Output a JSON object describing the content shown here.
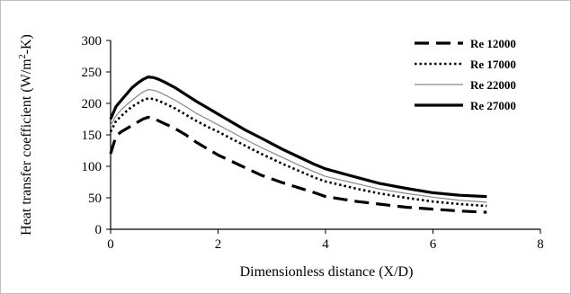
{
  "chart_data": {
    "type": "line",
    "title": "",
    "xlabel": "Dimensionless distance (X/D)",
    "ylabel_main": "Heat transfer coefficient (W/m",
    "ylabel_sup": "2",
    "ylabel_end": "-K)",
    "xlim": [
      0,
      8
    ],
    "ylim": [
      0,
      300
    ],
    "x_ticks": [
      0,
      2,
      4,
      6,
      8
    ],
    "y_ticks": [
      0,
      50,
      100,
      150,
      200,
      250,
      300
    ],
    "x_tick_labels": [
      "0",
      "2",
      "4",
      "6",
      "8"
    ],
    "y_tick_labels": [
      "0",
      "50",
      "100",
      "150",
      "200",
      "250",
      "300"
    ],
    "grid": false,
    "legend_position": "top-right",
    "series": [
      {
        "name": "Re 12000",
        "style": "long-dash",
        "color": "#000000",
        "x": [
          0,
          0.1,
          0.2,
          0.3,
          0.4,
          0.5,
          0.6,
          0.7,
          0.8,
          0.9,
          1.0,
          1.2,
          1.4,
          1.6,
          1.8,
          2.0,
          2.2,
          2.5,
          2.8,
          3.0,
          3.2,
          3.5,
          3.8,
          4.0,
          4.3,
          4.6,
          5.0,
          5.5,
          6.0,
          6.5,
          7.0
        ],
        "y": [
          120,
          148,
          155,
          160,
          165,
          170,
          175,
          178,
          176,
          172,
          168,
          160,
          150,
          138,
          128,
          118,
          110,
          98,
          86,
          80,
          74,
          66,
          58,
          52,
          48,
          44,
          40,
          35,
          32,
          29,
          27
        ]
      },
      {
        "name": "Re 17000",
        "style": "dotted",
        "color": "#000000",
        "x": [
          0,
          0.1,
          0.2,
          0.3,
          0.4,
          0.5,
          0.6,
          0.7,
          0.8,
          0.9,
          1.0,
          1.2,
          1.4,
          1.6,
          1.8,
          2.0,
          2.2,
          2.5,
          2.8,
          3.0,
          3.2,
          3.5,
          3.8,
          4.0,
          4.3,
          4.6,
          5.0,
          5.5,
          6.0,
          6.5,
          7.0
        ],
        "y": [
          155,
          172,
          180,
          188,
          195,
          200,
          205,
          208,
          207,
          204,
          200,
          192,
          182,
          172,
          163,
          155,
          146,
          133,
          120,
          112,
          104,
          93,
          82,
          76,
          70,
          64,
          57,
          50,
          44,
          40,
          37
        ]
      },
      {
        "name": "Re 22000",
        "style": "thin-solid",
        "color": "#888888",
        "x": [
          0,
          0.1,
          0.2,
          0.3,
          0.4,
          0.5,
          0.6,
          0.7,
          0.8,
          0.9,
          1.0,
          1.2,
          1.4,
          1.6,
          1.8,
          2.0,
          2.2,
          2.5,
          2.8,
          3.0,
          3.2,
          3.5,
          3.8,
          4.0,
          4.3,
          4.6,
          5.0,
          5.5,
          6.0,
          6.5,
          7.0
        ],
        "y": [
          165,
          180,
          190,
          198,
          205,
          212,
          218,
          222,
          221,
          218,
          214,
          205,
          195,
          184,
          175,
          166,
          157,
          143,
          130,
          122,
          114,
          102,
          91,
          84,
          78,
          72,
          64,
          57,
          51,
          46,
          43
        ]
      },
      {
        "name": "Re 27000",
        "style": "thick-solid",
        "color": "#000000",
        "x": [
          0,
          0.1,
          0.2,
          0.3,
          0.4,
          0.5,
          0.6,
          0.7,
          0.8,
          0.9,
          1.0,
          1.2,
          1.4,
          1.6,
          1.8,
          2.0,
          2.2,
          2.5,
          2.8,
          3.0,
          3.2,
          3.5,
          3.8,
          4.0,
          4.3,
          4.6,
          5.0,
          5.5,
          6.0,
          6.5,
          7.0
        ],
        "y": [
          175,
          195,
          205,
          215,
          225,
          232,
          238,
          242,
          241,
          238,
          234,
          225,
          214,
          203,
          193,
          183,
          173,
          158,
          145,
          136,
          127,
          115,
          103,
          96,
          89,
          82,
          73,
          65,
          58,
          54,
          52
        ]
      }
    ]
  }
}
